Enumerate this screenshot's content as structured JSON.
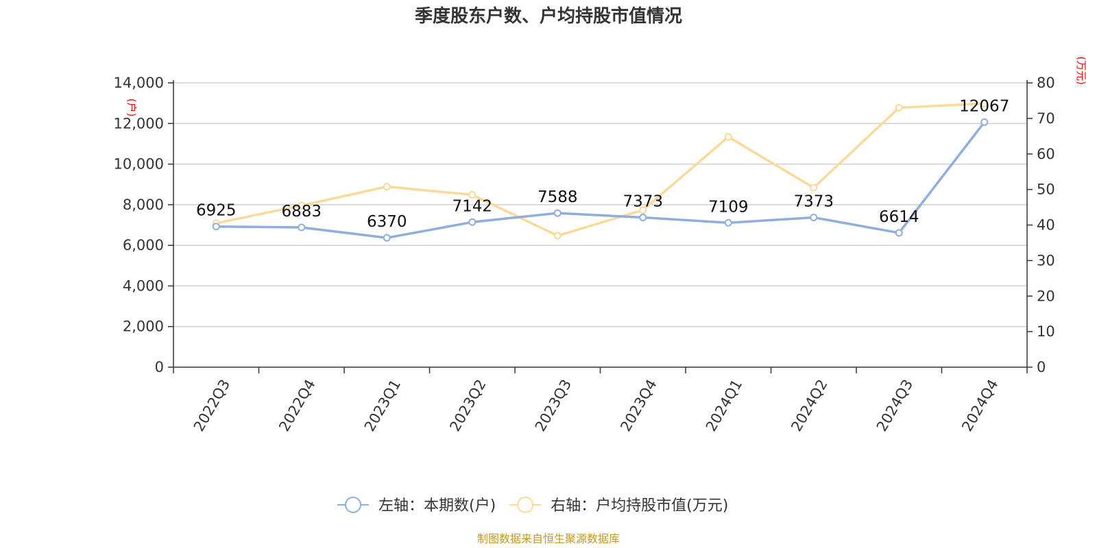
{
  "chart_data": {
    "type": "line",
    "title": "季度股东户数、户均持股市值情况",
    "categories": [
      "2022Q3",
      "2022Q4",
      "2023Q1",
      "2023Q2",
      "2023Q3",
      "2023Q4",
      "2024Q1",
      "2024Q2",
      "2024Q3",
      "2024Q4"
    ],
    "left_axis": {
      "unit": "(户)",
      "ylim": [
        0,
        14000
      ],
      "ticks": [
        0,
        2000,
        4000,
        6000,
        8000,
        10000,
        12000,
        14000
      ],
      "tick_labels": [
        "0",
        "2,000",
        "4,000",
        "6,000",
        "8,000",
        "10,000",
        "12,000",
        "14,000"
      ]
    },
    "right_axis": {
      "unit": "(万元)",
      "ylim": [
        0,
        80
      ],
      "ticks": [
        0,
        10,
        20,
        30,
        40,
        50,
        60,
        70,
        80
      ],
      "tick_labels": [
        "0",
        "10",
        "20",
        "30",
        "40",
        "50",
        "60",
        "70",
        "80"
      ]
    },
    "series": [
      {
        "name": "左轴：本期数(户)",
        "axis": "left",
        "color": "#8eaedc",
        "values": [
          6925,
          6883,
          6370,
          7142,
          7588,
          7373,
          7109,
          7373,
          6614,
          12067
        ],
        "labels": [
          "6925",
          "6883",
          "6370",
          "7142",
          "7588",
          "7373",
          "7109",
          "7373",
          "6614",
          "12067"
        ]
      },
      {
        "name": "右轴：户均持股市值(万元)",
        "axis": "right",
        "color": "#fcd998",
        "values": [
          40.5,
          45.5,
          50.8,
          48.5,
          37.0,
          44.2,
          64.8,
          50.5,
          73.0,
          74.2
        ]
      }
    ],
    "grid": true,
    "legend_position": "bottom-center"
  },
  "source": "制图数据来自恒生聚源数据库"
}
